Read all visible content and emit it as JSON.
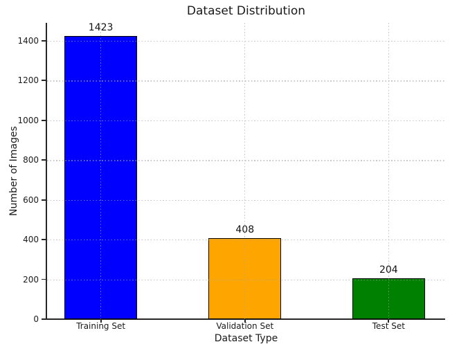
{
  "chart_data": {
    "type": "bar",
    "title": "Dataset Distribution",
    "xlabel": "Dataset Type",
    "ylabel": "Number of Images",
    "categories": [
      "Training Set",
      "Validation Set",
      "Test Set"
    ],
    "values": [
      1423,
      408,
      204
    ],
    "value_labels": [
      "1423",
      "408",
      "204"
    ],
    "series": [
      {
        "name": "Number of Images",
        "values": [
          1423,
          408,
          204
        ]
      }
    ],
    "bar_colors": [
      "#0000ff",
      "#ffa500",
      "#008000"
    ],
    "bar_edge_color": "#000000",
    "ylim": [
      0,
      1490
    ],
    "yticks": [
      0,
      200,
      400,
      600,
      800,
      1000,
      1200,
      1400
    ],
    "grid": {
      "on": true,
      "style": "dotted",
      "over_bars": true
    },
    "legend": "none"
  },
  "style": {
    "background": "#ffffff",
    "spine_color": "#262626",
    "grid_color": "rgba(165,165,165,0.62)",
    "text_color": "#1a1a1a"
  }
}
